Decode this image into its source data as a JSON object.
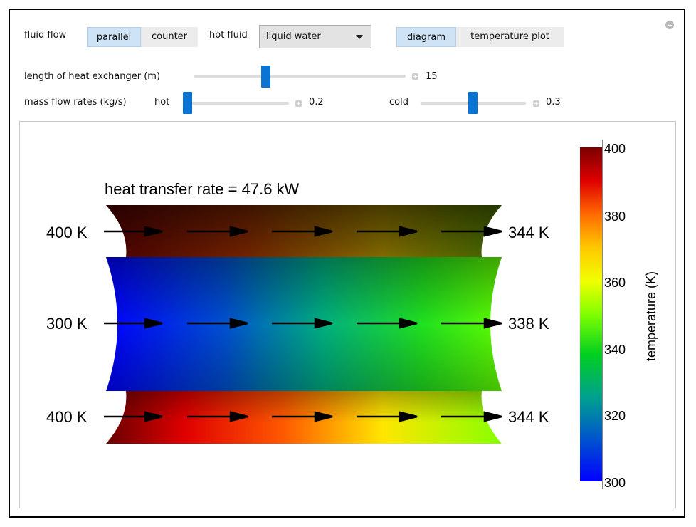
{
  "controls": {
    "fluid_flow_label": "fluid flow",
    "flow_options": [
      "parallel",
      "counter"
    ],
    "flow_selected": "parallel",
    "hot_fluid_label": "hot fluid",
    "hot_fluid_value": "liquid water",
    "view_options": [
      "diagram",
      "temperature plot"
    ],
    "view_selected": "diagram",
    "length_label": "length of heat exchanger (m)",
    "length_value": "15",
    "mass_flow_label": "mass flow rates (kg/s)",
    "hot_label": "hot",
    "hot_value": "0.2",
    "cold_label": "cold",
    "cold_value": "0.3",
    "slider_levels": {
      "length": 0.35,
      "hot": 0.0,
      "cold": 0.5
    }
  },
  "diagram": {
    "title": "heat transfer rate = 47.6 kW",
    "top_in": "400 K",
    "top_out": "344 K",
    "mid_in": "300 K",
    "mid_out": "338 K",
    "bottom_in": "400 K",
    "bottom_out": "344 K"
  },
  "colorbar": {
    "label": "temperature (K)",
    "ticks": [
      "400",
      "380",
      "360",
      "340",
      "320",
      "300"
    ],
    "range": [
      300,
      400
    ],
    "colors": [
      "#7a0000",
      "#e00000",
      "#ff6a00",
      "#ffd200",
      "#f0ff00",
      "#80ff00",
      "#00e000",
      "#00a090",
      "#0000ff"
    ]
  }
}
